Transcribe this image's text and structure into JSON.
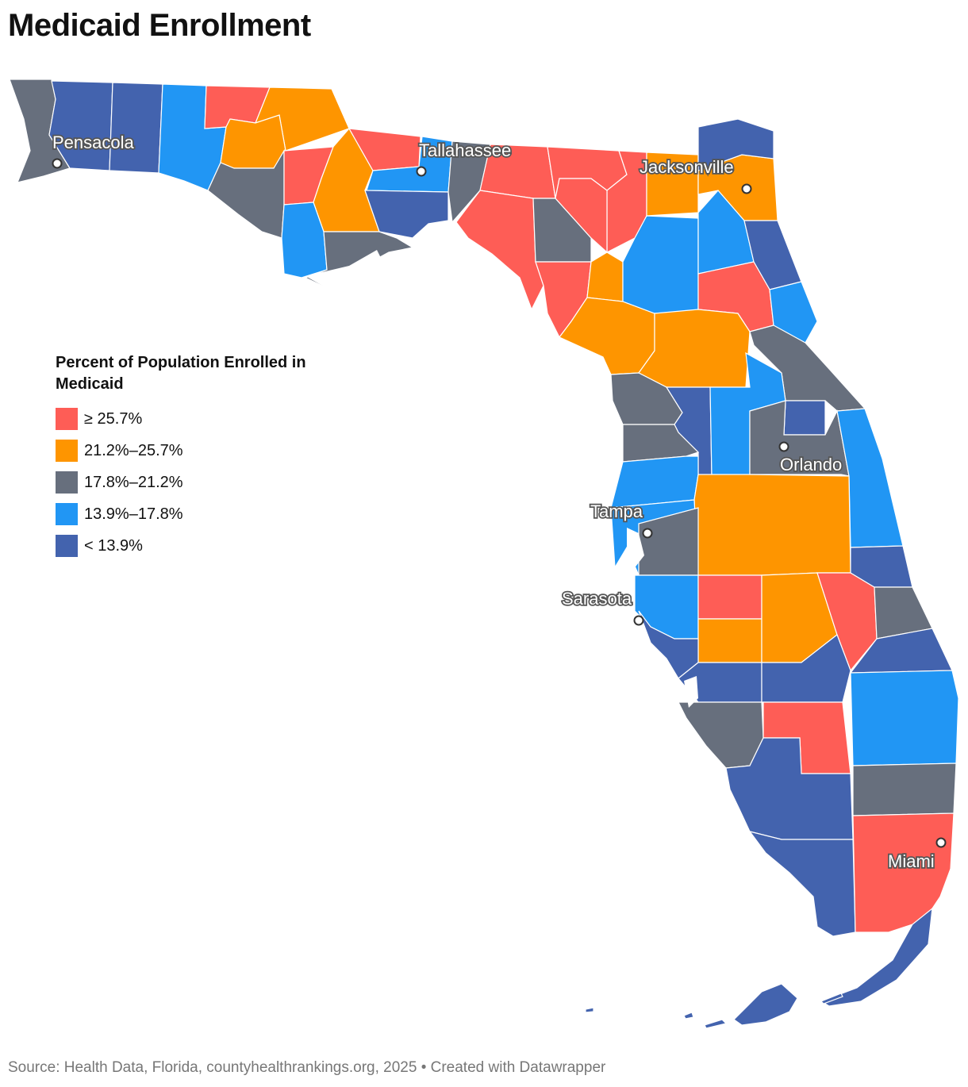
{
  "title": "Medicaid Enrollment",
  "legend": {
    "title": "Percent of Population Enrolled in Medicaid",
    "items": [
      {
        "label": "≥ 25.7%",
        "color": "#fe5d56"
      },
      {
        "label": "21.2%–25.7%",
        "color": "#fe9500"
      },
      {
        "label": "17.8%–21.2%",
        "color": "#676f7d"
      },
      {
        "label": "13.9%–17.8%",
        "color": "#2196f4"
      },
      {
        "label": "< 13.9%",
        "color": "#4363ae"
      }
    ]
  },
  "cities": [
    {
      "name": "Pensacola"
    },
    {
      "name": "Tallahassee"
    },
    {
      "name": "Jacksonville"
    },
    {
      "name": "Orlando"
    },
    {
      "name": "Tampa"
    },
    {
      "name": "Sarasota"
    },
    {
      "name": "Miami"
    }
  ],
  "source": "Source: Health Data, Florida, countyhealthrankings.org, 2025 • Created with Datawrapper"
}
